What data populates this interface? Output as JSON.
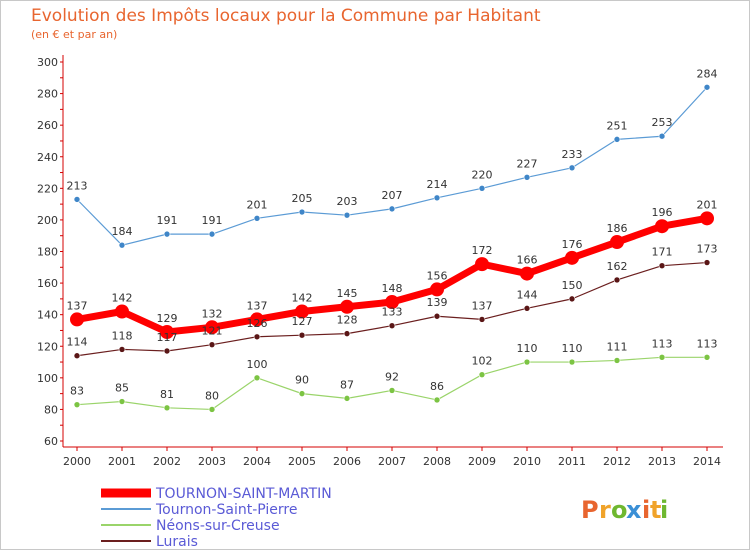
{
  "header": {
    "title": "Evolution des Impôts locaux pour la Commune par Habitant",
    "subtitle": "(en € et par an)"
  },
  "brand": {
    "letters": [
      "P",
      "r",
      "o",
      "x",
      "i",
      "t",
      "i"
    ],
    "colors": [
      "#e8652f",
      "#f0a32a",
      "#6fb830",
      "#3a8fd6",
      "#e8652f",
      "#f0a32a",
      "#6fb830"
    ]
  },
  "chart_data": {
    "type": "line",
    "title": "Evolution des Impôts locaux pour la Commune par Habitant",
    "subtitle": "(en € et par an)",
    "xlabel": "",
    "ylabel": "",
    "x": [
      "2000",
      "2001",
      "2002",
      "2003",
      "2004",
      "2005",
      "2006",
      "2007",
      "2008",
      "2009",
      "2010",
      "2011",
      "2012",
      "2013",
      "2014"
    ],
    "ylim": [
      60,
      300
    ],
    "yticks": [
      60,
      80,
      100,
      120,
      140,
      160,
      180,
      200,
      220,
      240,
      260,
      280,
      300
    ],
    "grid": false,
    "legend_position": "bottom-left",
    "series": [
      {
        "name": "Tournon-Saint-Pierre",
        "color": "#5b9bd5",
        "point_color": "#3f86c8",
        "width": 1.2,
        "values": [
          213,
          184,
          191,
          191,
          201,
          205,
          203,
          207,
          214,
          220,
          227,
          233,
          251,
          253,
          284
        ]
      },
      {
        "name": "Néons-sur-Creuse",
        "color": "#9ad46a",
        "point_color": "#7cc443",
        "width": 1.2,
        "values": [
          83,
          85,
          81,
          80,
          100,
          90,
          87,
          92,
          86,
          102,
          110,
          110,
          111,
          113,
          113
        ]
      },
      {
        "name": "Lurais",
        "color": "#6b1f1f",
        "point_color": "#5a1616",
        "width": 1.2,
        "values": [
          114,
          118,
          117,
          121,
          126,
          127,
          128,
          133,
          139,
          137,
          144,
          150,
          162,
          171,
          173
        ]
      },
      {
        "name": "TOURNON-SAINT-MARTIN",
        "color": "#ff0000",
        "point_color": "#ff0000",
        "width": 7,
        "values": [
          137,
          142,
          129,
          132,
          137,
          142,
          145,
          148,
          156,
          172,
          166,
          176,
          186,
          196,
          201
        ]
      }
    ],
    "legend_order": [
      "TOURNON-SAINT-MARTIN",
      "Tournon-Saint-Pierre",
      "Néons-sur-Creuse",
      "Lurais"
    ]
  }
}
